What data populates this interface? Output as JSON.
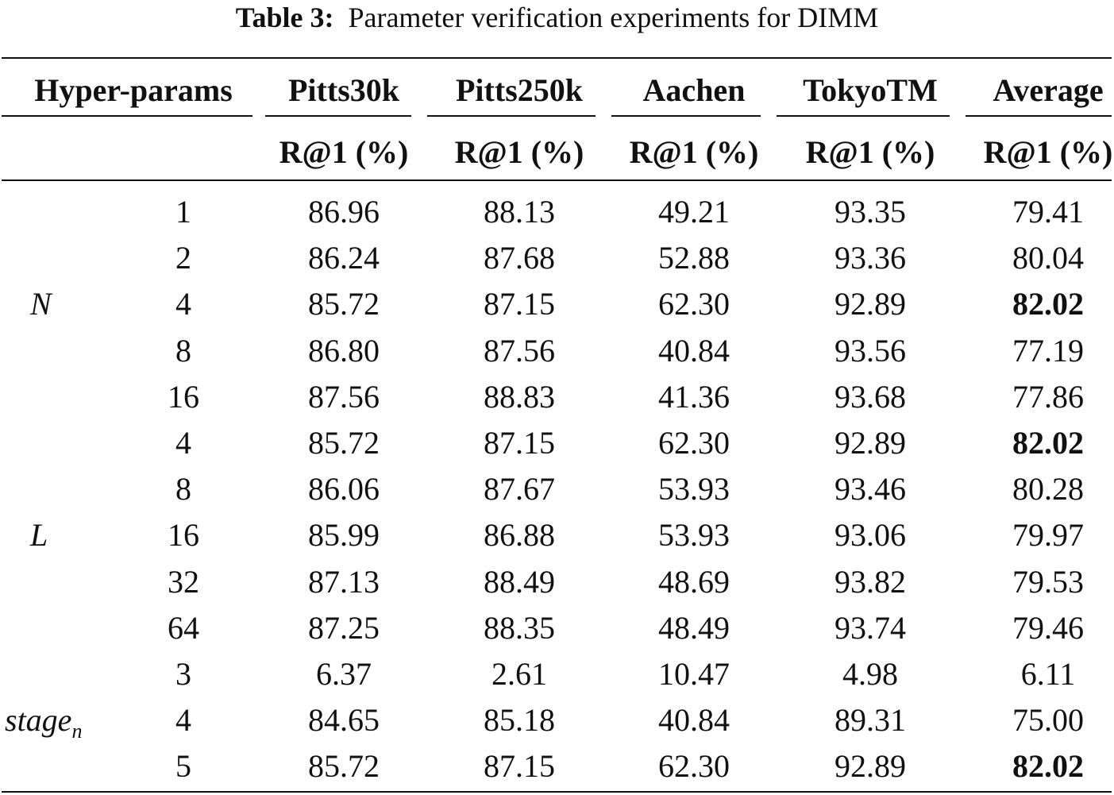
{
  "caption": {
    "label": "Table 3:",
    "text": "Parameter verification experiments for DIMM"
  },
  "header": {
    "hyper": "Hyper-params",
    "datasets": [
      "Pitts30k",
      "Pitts250k",
      "Aachen",
      "TokyoTM",
      "Average"
    ],
    "metric": "R@1 (%)"
  },
  "groups": [
    {
      "label": "N",
      "subscript": "",
      "rows": 5
    },
    {
      "label": "L",
      "subscript": "",
      "rows": 5
    },
    {
      "label": "stage",
      "subscript": "n",
      "rows": 3
    }
  ],
  "rows": [
    {
      "value": "1",
      "cells": [
        "86.96",
        "88.13",
        "49.21",
        "93.35",
        "79.41"
      ],
      "bold_average": false
    },
    {
      "value": "2",
      "cells": [
        "86.24",
        "87.68",
        "52.88",
        "93.36",
        "80.04"
      ],
      "bold_average": false
    },
    {
      "value": "4",
      "cells": [
        "85.72",
        "87.15",
        "62.30",
        "92.89",
        "82.02"
      ],
      "bold_average": true
    },
    {
      "value": "8",
      "cells": [
        "86.80",
        "87.56",
        "40.84",
        "93.56",
        "77.19"
      ],
      "bold_average": false
    },
    {
      "value": "16",
      "cells": [
        "87.56",
        "88.83",
        "41.36",
        "93.68",
        "77.86"
      ],
      "bold_average": false
    },
    {
      "value": "4",
      "cells": [
        "85.72",
        "87.15",
        "62.30",
        "92.89",
        "82.02"
      ],
      "bold_average": true
    },
    {
      "value": "8",
      "cells": [
        "86.06",
        "87.67",
        "53.93",
        "93.46",
        "80.28"
      ],
      "bold_average": false
    },
    {
      "value": "16",
      "cells": [
        "85.99",
        "86.88",
        "53.93",
        "93.06",
        "79.97"
      ],
      "bold_average": false
    },
    {
      "value": "32",
      "cells": [
        "87.13",
        "88.49",
        "48.69",
        "93.82",
        "79.53"
      ],
      "bold_average": false
    },
    {
      "value": "64",
      "cells": [
        "87.25",
        "88.35",
        "48.49",
        "93.74",
        "79.46"
      ],
      "bold_average": false
    },
    {
      "value": "3",
      "cells": [
        "6.37",
        "2.61",
        "10.47",
        "4.98",
        "6.11"
      ],
      "bold_average": false
    },
    {
      "value": "4",
      "cells": [
        "84.65",
        "85.18",
        "40.84",
        "89.31",
        "75.00"
      ],
      "bold_average": false
    },
    {
      "value": "5",
      "cells": [
        "85.72",
        "87.15",
        "62.30",
        "92.89",
        "82.02"
      ],
      "bold_average": true
    }
  ]
}
